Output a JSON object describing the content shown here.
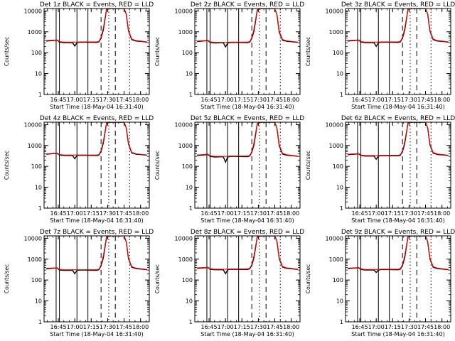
{
  "colors": {
    "events": "#000000",
    "lld": "#ff0000",
    "background": "#ffffff"
  },
  "chart_data": [
    {
      "type": "line",
      "title": "Det 1z  BLACK = Events, RED = LLD",
      "xlabel": "Start Time (18-May-04 16:31:40)",
      "ylabel": "Counts/sec",
      "xticks": [
        "16:45",
        "17:00",
        "17:15",
        "17:30",
        "17:45",
        "18:00"
      ],
      "yticks": [
        "1",
        "10",
        "100",
        "1000",
        "10000"
      ],
      "yscale": "log",
      "ylim": [
        1,
        13000
      ],
      "x_time": [
        "16:34",
        "16:44",
        "16:46",
        "16:50",
        "16:58",
        "17:00",
        "17:02",
        "17:05",
        "17:20",
        "17:22",
        "17:24",
        "17:26",
        "17:29",
        "17:33",
        "17:45",
        "17:47",
        "17:49",
        "17:52",
        "17:56",
        "18:02",
        "18:06"
      ],
      "series": [
        {
          "values": [
            360,
            400,
            320,
            300,
            300,
            210,
            300,
            320,
            310,
            330,
            500,
            1200,
            12000,
            13000,
            13000,
            7000,
            1100,
            420,
            360,
            340,
            320
          ]
        },
        {
          "values": [
            380,
            410,
            340,
            320,
            320,
            320,
            320,
            330,
            330,
            350,
            550,
            1500,
            12000,
            13000,
            13000,
            7000,
            1200,
            450,
            380,
            350,
            330
          ]
        }
      ],
      "markers": {
        "solid": [
          "16:43",
          "16:46",
          "17:02",
          "17:12"
        ],
        "dashed": [
          "17:24",
          "17:37"
        ],
        "dotted": [
          "17:31",
          "17:50"
        ]
      }
    },
    {
      "type": "line",
      "title": "Det 2z  BLACK = Events, RED = LLD",
      "xlabel": "Start Time (18-May-04 16:31:40)",
      "ylabel": "Counts/sec",
      "xticks": [
        "16:45",
        "17:00",
        "17:15",
        "17:30",
        "17:45",
        "18:00"
      ],
      "yticks": [
        "1",
        "10",
        "100",
        "1000",
        "10000"
      ],
      "yscale": "log",
      "ylim": [
        1,
        13000
      ],
      "x_time": [
        "16:34",
        "16:44",
        "16:46",
        "16:50",
        "16:58",
        "17:00",
        "17:02",
        "17:05",
        "17:20",
        "17:22",
        "17:24",
        "17:26",
        "17:29",
        "17:33",
        "17:45",
        "17:47",
        "17:49",
        "17:52",
        "17:56",
        "18:02",
        "18:06"
      ],
      "series": [
        {
          "values": [
            340,
            380,
            310,
            290,
            300,
            190,
            290,
            310,
            300,
            320,
            480,
            1100,
            11000,
            13000,
            13000,
            6500,
            1000,
            400,
            350,
            330,
            310
          ]
        },
        {
          "values": [
            360,
            390,
            330,
            310,
            310,
            310,
            310,
            320,
            320,
            340,
            520,
            1400,
            11500,
            13000,
            13000,
            6500,
            1100,
            430,
            370,
            340,
            320
          ]
        }
      ],
      "markers": {
        "solid": [
          "16:43",
          "16:46",
          "17:02",
          "17:12"
        ],
        "dashed": [
          "17:24",
          "17:37"
        ],
        "dotted": [
          "17:31",
          "17:50"
        ]
      }
    },
    {
      "type": "line",
      "title": "Det 3z  BLACK = Events, RED = LLD",
      "xlabel": "Start Time (18-May-04 16:31:40)",
      "ylabel": "Counts/sec",
      "xticks": [
        "16:45",
        "17:00",
        "17:15",
        "17:30",
        "17:45",
        "18:00"
      ],
      "yticks": [
        "1",
        "10",
        "100",
        "1000",
        "10000"
      ],
      "yscale": "log",
      "ylim": [
        1,
        13000
      ],
      "x_time": [
        "16:34",
        "16:44",
        "16:46",
        "16:50",
        "16:58",
        "17:00",
        "17:02",
        "17:05",
        "17:20",
        "17:22",
        "17:24",
        "17:26",
        "17:29",
        "17:33",
        "17:45",
        "17:47",
        "17:49",
        "17:52",
        "17:56",
        "18:02",
        "18:06"
      ],
      "series": [
        {
          "values": [
            360,
            400,
            320,
            300,
            300,
            200,
            300,
            320,
            310,
            330,
            500,
            1200,
            12000,
            13000,
            13000,
            7000,
            1100,
            420,
            360,
            340,
            320
          ]
        },
        {
          "values": [
            380,
            410,
            340,
            320,
            320,
            320,
            320,
            330,
            330,
            350,
            550,
            1500,
            12000,
            13000,
            13000,
            7000,
            1200,
            450,
            380,
            350,
            330
          ]
        }
      ],
      "markers": {
        "solid": [
          "16:43",
          "16:46",
          "17:02",
          "17:12"
        ],
        "dashed": [
          "17:24",
          "17:37"
        ],
        "dotted": [
          "17:31",
          "17:50"
        ]
      }
    },
    {
      "type": "line",
      "title": "Det 4z  BLACK = Events, RED = LLD",
      "xlabel": "Start Time (18-May-04 16:31:40)",
      "ylabel": "Counts/sec",
      "xticks": [
        "16:45",
        "17:00",
        "17:15",
        "17:30",
        "17:45",
        "18:00"
      ],
      "yticks": [
        "1",
        "10",
        "100",
        "1000",
        "10000"
      ],
      "yscale": "log",
      "ylim": [
        1,
        13000
      ],
      "x_time": [
        "16:34",
        "16:44",
        "16:46",
        "16:50",
        "16:58",
        "17:00",
        "17:02",
        "17:05",
        "17:20",
        "17:22",
        "17:24",
        "17:26",
        "17:29",
        "17:33",
        "17:45",
        "17:47",
        "17:49",
        "17:52",
        "17:56",
        "18:02",
        "18:06"
      ],
      "series": [
        {
          "values": [
            380,
            420,
            350,
            330,
            330,
            230,
            330,
            340,
            330,
            350,
            520,
            1300,
            12000,
            13000,
            13000,
            7000,
            1200,
            440,
            380,
            360,
            340
          ]
        },
        {
          "values": [
            400,
            430,
            370,
            350,
            350,
            350,
            350,
            350,
            350,
            370,
            570,
            1600,
            12000,
            13000,
            13000,
            7000,
            1300,
            470,
            400,
            370,
            350
          ]
        }
      ],
      "markers": {
        "solid": [
          "16:43",
          "16:46",
          "17:02",
          "17:12"
        ],
        "dashed": [
          "17:24",
          "17:37"
        ],
        "dotted": [
          "17:31",
          "17:50"
        ]
      }
    },
    {
      "type": "line",
      "title": "Det 5z  BLACK = Events, RED = LLD",
      "xlabel": "Start Time (18-May-04 16:31:40)",
      "ylabel": "Counts/sec",
      "xticks": [
        "16:45",
        "17:00",
        "17:15",
        "17:30",
        "17:45",
        "18:00"
      ],
      "yticks": [
        "1",
        "10",
        "100",
        "1000",
        "10000"
      ],
      "yscale": "log",
      "ylim": [
        1,
        13000
      ],
      "x_time": [
        "16:34",
        "16:44",
        "16:46",
        "16:50",
        "16:58",
        "17:00",
        "17:02",
        "17:05",
        "17:20",
        "17:22",
        "17:24",
        "17:26",
        "17:29",
        "17:33",
        "17:45",
        "17:47",
        "17:49",
        "17:52",
        "17:56",
        "18:02",
        "18:06"
      ],
      "series": [
        {
          "values": [
            330,
            370,
            300,
            280,
            290,
            160,
            280,
            300,
            290,
            310,
            470,
            1100,
            11000,
            13000,
            13000,
            6500,
            1000,
            390,
            340,
            320,
            300
          ]
        },
        {
          "values": [
            350,
            380,
            320,
            300,
            300,
            300,
            300,
            310,
            310,
            330,
            510,
            1400,
            11500,
            13000,
            13000,
            6500,
            1100,
            420,
            360,
            330,
            310
          ]
        }
      ],
      "markers": {
        "solid": [
          "16:43",
          "16:46",
          "17:02",
          "17:12"
        ],
        "dashed": [
          "17:24",
          "17:37"
        ],
        "dotted": [
          "17:31",
          "17:50"
        ]
      }
    },
    {
      "type": "line",
      "title": "Det 6z  BLACK = Events, RED = LLD",
      "xlabel": "Start Time (18-May-04 16:31:40)",
      "ylabel": "Counts/sec",
      "xticks": [
        "16:45",
        "17:00",
        "17:15",
        "17:30",
        "17:45",
        "18:00"
      ],
      "yticks": [
        "1",
        "10",
        "100",
        "1000",
        "10000"
      ],
      "yscale": "log",
      "ylim": [
        1,
        13000
      ],
      "x_time": [
        "16:34",
        "16:44",
        "16:46",
        "16:50",
        "16:58",
        "17:00",
        "17:02",
        "17:05",
        "17:20",
        "17:22",
        "17:24",
        "17:26",
        "17:29",
        "17:33",
        "17:45",
        "17:47",
        "17:49",
        "17:52",
        "17:56",
        "18:02",
        "18:06"
      ],
      "series": [
        {
          "values": [
            360,
            400,
            330,
            310,
            310,
            220,
            310,
            330,
            320,
            340,
            510,
            1250,
            12000,
            13000,
            13000,
            7000,
            1100,
            430,
            370,
            350,
            330
          ]
        },
        {
          "values": [
            380,
            410,
            350,
            330,
            330,
            330,
            330,
            340,
            340,
            360,
            560,
            1550,
            12000,
            13000,
            13000,
            7000,
            1200,
            460,
            390,
            360,
            340
          ]
        }
      ],
      "markers": {
        "solid": [
          "16:43",
          "16:46",
          "17:02",
          "17:12"
        ],
        "dashed": [
          "17:24",
          "17:37"
        ],
        "dotted": [
          "17:31",
          "17:50"
        ]
      }
    },
    {
      "type": "line",
      "title": "Det 7z  BLACK = Events, RED = LLD",
      "xlabel": "Start Time (18-May-04 16:31:40)",
      "ylabel": "Counts/sec",
      "xticks": [
        "16:45",
        "17:00",
        "17:15",
        "17:30",
        "17:45",
        "18:00"
      ],
      "yticks": [
        "1",
        "10",
        "100",
        "1000",
        "10000"
      ],
      "yscale": "log",
      "ylim": [
        1,
        13000
      ],
      "x_time": [
        "16:34",
        "16:44",
        "16:46",
        "16:50",
        "16:58",
        "17:00",
        "17:02",
        "17:05",
        "17:20",
        "17:22",
        "17:24",
        "17:26",
        "17:29",
        "17:33",
        "17:45",
        "17:47",
        "17:49",
        "17:52",
        "17:56",
        "18:02",
        "18:06"
      ],
      "series": [
        {
          "values": [
            340,
            380,
            300,
            290,
            290,
            200,
            290,
            300,
            290,
            310,
            480,
            1150,
            11500,
            13000,
            13000,
            6800,
            1050,
            410,
            350,
            330,
            310
          ]
        },
        {
          "values": [
            360,
            390,
            320,
            310,
            310,
            310,
            310,
            310,
            310,
            330,
            520,
            1450,
            12000,
            13000,
            13000,
            6800,
            1150,
            440,
            370,
            340,
            320
          ]
        }
      ],
      "markers": {
        "solid": [
          "16:43",
          "16:46",
          "17:02",
          "17:12"
        ],
        "dashed": [
          "17:24",
          "17:37"
        ],
        "dotted": [
          "17:31",
          "17:50"
        ]
      }
    },
    {
      "type": "line",
      "title": "Det 8z  BLACK = Events, RED = LLD",
      "xlabel": "Start Time (18-May-04 16:31:40)",
      "ylabel": "Counts/sec",
      "xticks": [
        "16:45",
        "17:00",
        "17:15",
        "17:30",
        "17:45",
        "18:00"
      ],
      "yticks": [
        "1",
        "10",
        "100",
        "1000",
        "10000"
      ],
      "yscale": "log",
      "ylim": [
        1,
        13000
      ],
      "x_time": [
        "16:34",
        "16:44",
        "16:46",
        "16:50",
        "16:58",
        "17:00",
        "17:02",
        "17:05",
        "17:20",
        "17:22",
        "17:24",
        "17:26",
        "17:29",
        "17:33",
        "17:45",
        "17:47",
        "17:49",
        "17:52",
        "17:56",
        "18:02",
        "18:06"
      ],
      "series": [
        {
          "values": [
            360,
            400,
            330,
            310,
            310,
            200,
            310,
            330,
            320,
            340,
            500,
            1200,
            12000,
            13000,
            13000,
            7000,
            1100,
            420,
            360,
            340,
            320
          ]
        },
        {
          "values": [
            380,
            410,
            350,
            330,
            330,
            330,
            330,
            340,
            340,
            360,
            550,
            1500,
            12000,
            13000,
            13000,
            7000,
            1200,
            450,
            380,
            350,
            330
          ]
        }
      ],
      "markers": {
        "solid": [
          "16:43",
          "16:46",
          "17:02",
          "17:12"
        ],
        "dashed": [
          "17:24",
          "17:37"
        ],
        "dotted": [
          "17:31",
          "17:50"
        ]
      }
    },
    {
      "type": "line",
      "title": "Det 9z  BLACK = Events, RED = LLD",
      "xlabel": "Start Time (18-May-04 16:31:40)",
      "ylabel": "Counts/sec",
      "xticks": [
        "16:45",
        "17:00",
        "17:15",
        "17:30",
        "17:45",
        "18:00"
      ],
      "yticks": [
        "1",
        "10",
        "100",
        "1000",
        "10000"
      ],
      "yscale": "log",
      "ylim": [
        1,
        13000
      ],
      "x_time": [
        "16:34",
        "16:44",
        "16:46",
        "16:50",
        "16:58",
        "17:00",
        "17:02",
        "17:05",
        "17:20",
        "17:22",
        "17:24",
        "17:26",
        "17:29",
        "17:33",
        "17:45",
        "17:47",
        "17:49",
        "17:52",
        "17:56",
        "18:02",
        "18:06"
      ],
      "series": [
        {
          "values": [
            350,
            390,
            320,
            300,
            300,
            230,
            300,
            320,
            310,
            330,
            490,
            1200,
            12000,
            13000,
            13000,
            6800,
            1050,
            410,
            350,
            330,
            310
          ]
        },
        {
          "values": [
            370,
            400,
            340,
            320,
            320,
            320,
            320,
            330,
            330,
            350,
            540,
            1500,
            12000,
            13000,
            13000,
            6800,
            1150,
            440,
            370,
            340,
            320
          ]
        }
      ],
      "markers": {
        "solid": [
          "16:43",
          "16:46",
          "17:02",
          "17:12"
        ],
        "dashed": [
          "17:24",
          "17:37"
        ],
        "dotted": [
          "17:31",
          "17:50"
        ]
      }
    }
  ]
}
